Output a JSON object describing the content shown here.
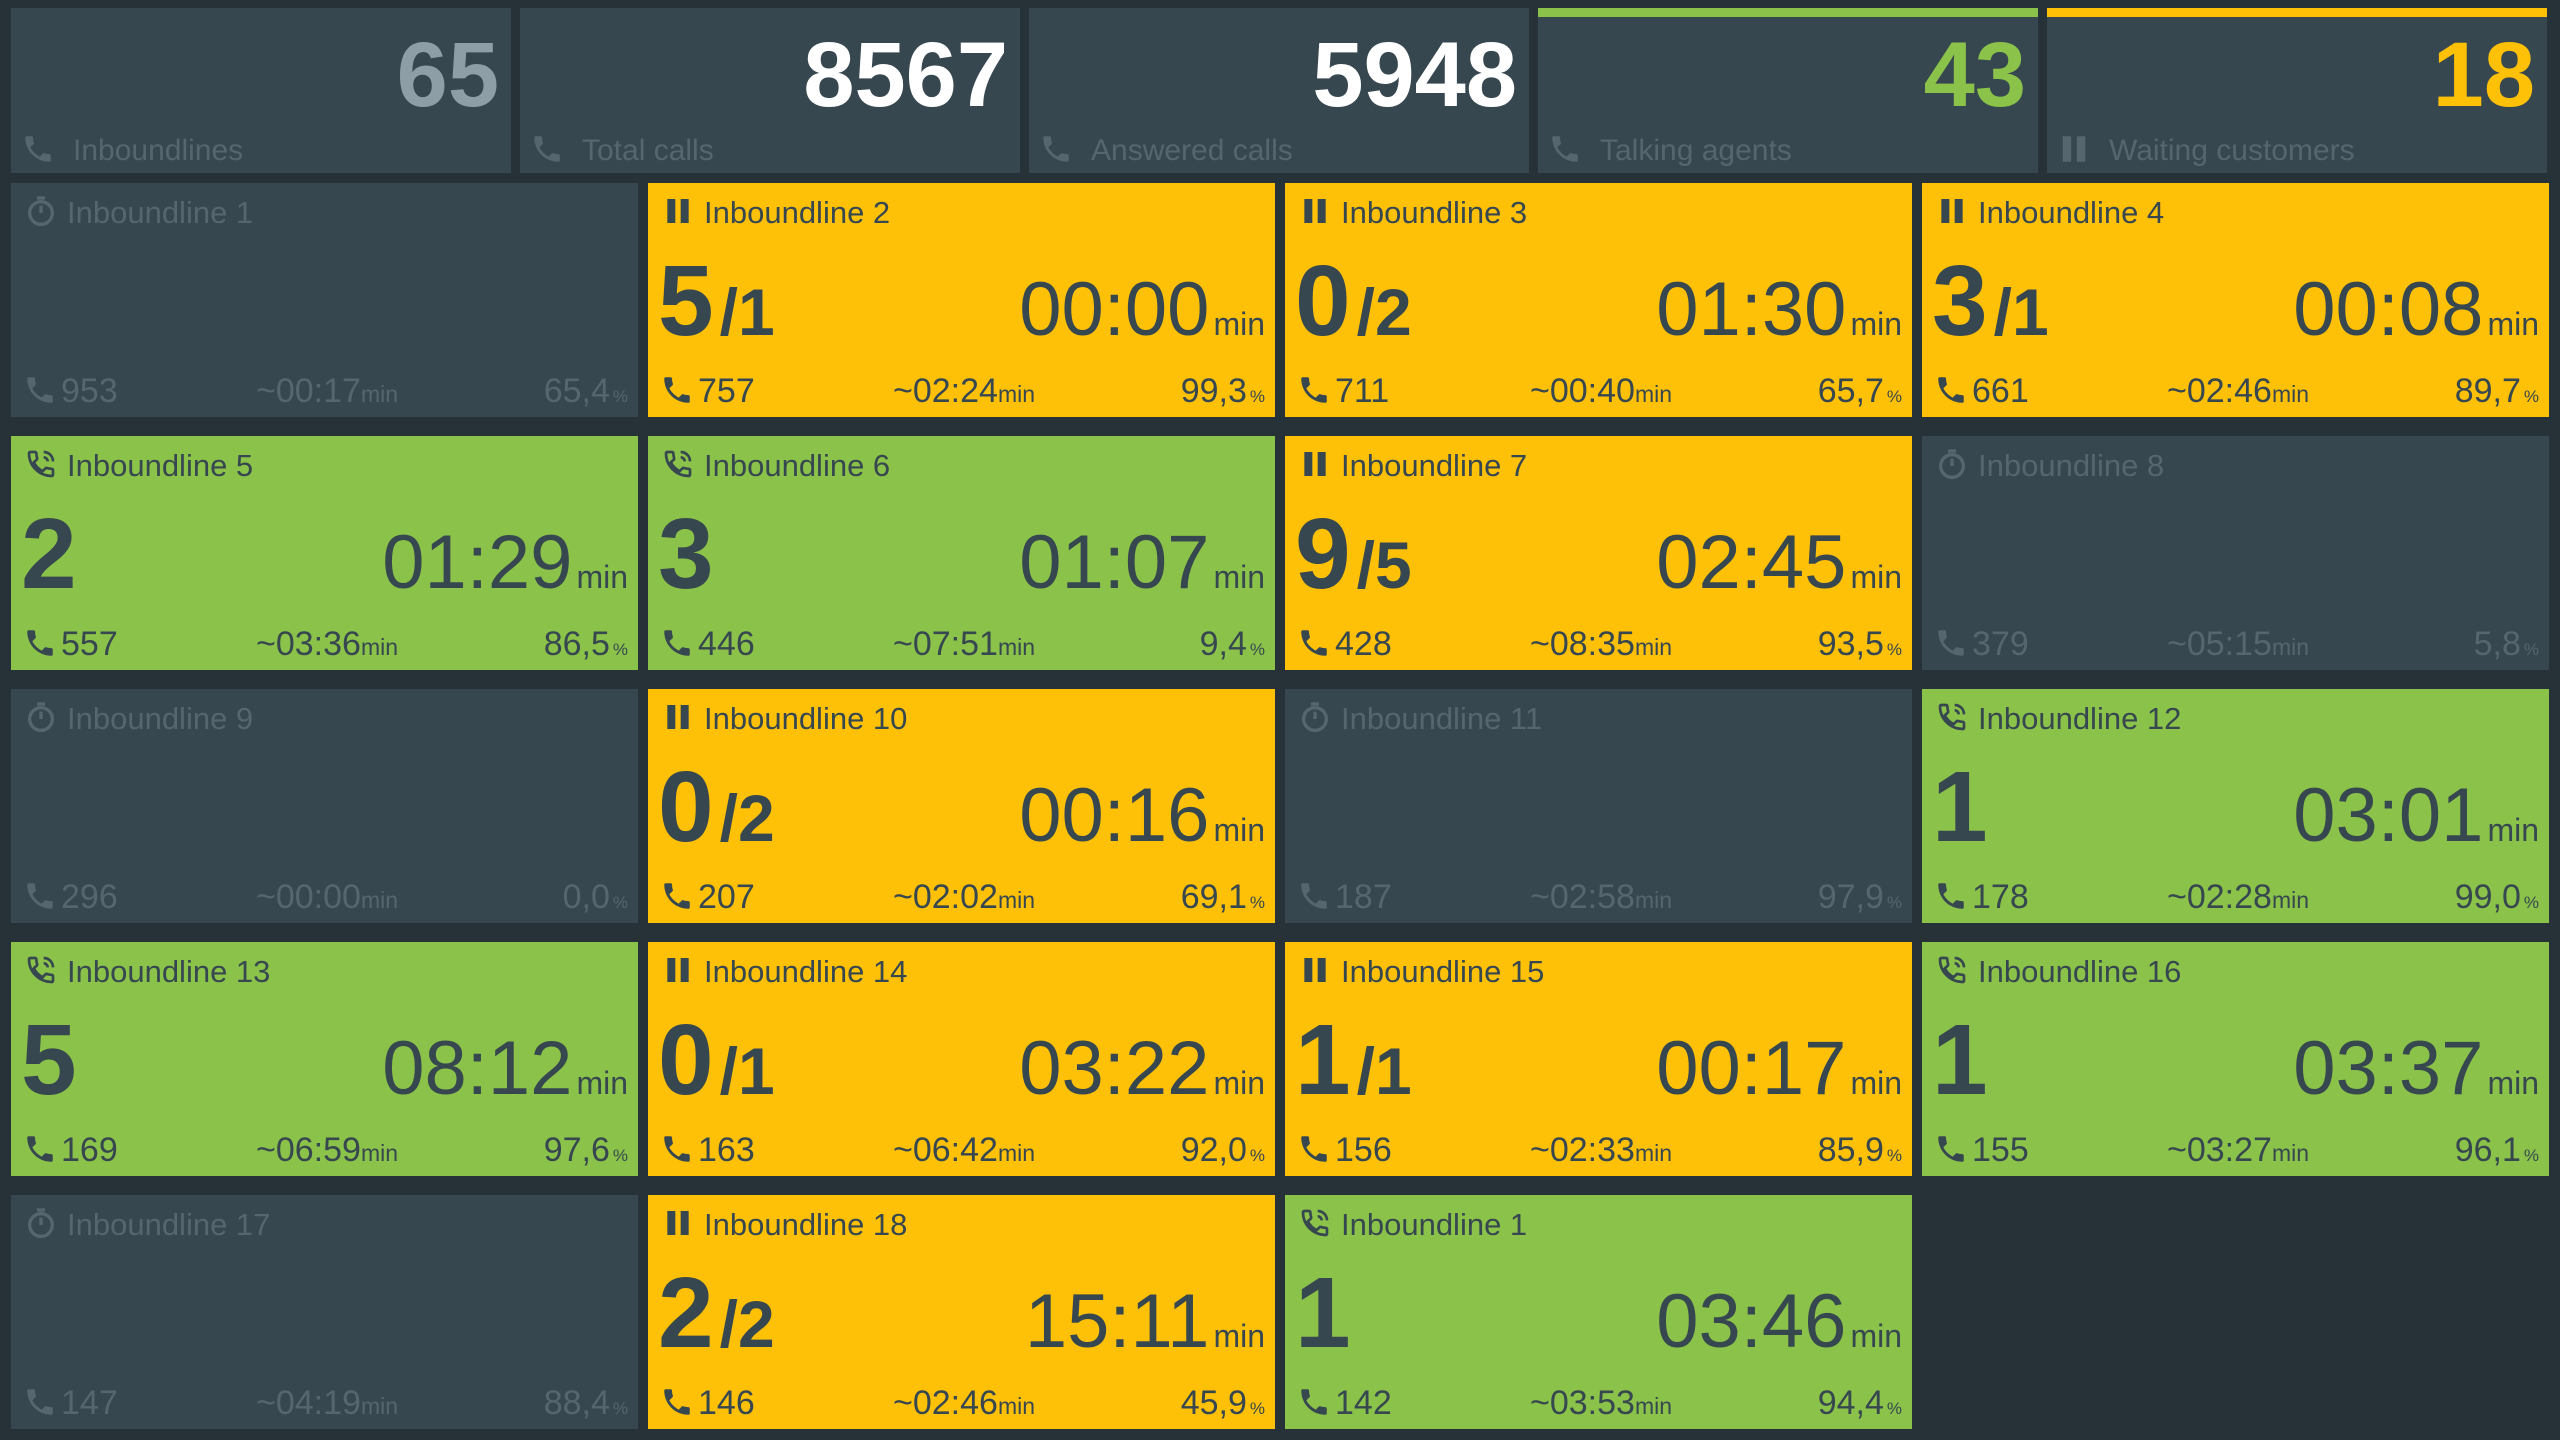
{
  "units": {
    "time": "min",
    "percent": "%"
  },
  "stats": [
    {
      "value": 65,
      "label": "Inboundlines",
      "color": "#8d9ea7",
      "top_bar": false,
      "icon": "phone"
    },
    {
      "value": 8567,
      "label": "Total calls",
      "color": "#ffffff",
      "top_bar": false,
      "icon": "phone"
    },
    {
      "value": 5948,
      "label": "Answered calls",
      "color": "#ffffff",
      "top_bar": false,
      "icon": "phone"
    },
    {
      "value": 43,
      "label": "Talking agents",
      "color": "#8bc34a",
      "top_bar": true,
      "icon": "phone"
    },
    {
      "value": 18,
      "label": "Waiting customers",
      "color": "#ffc107",
      "top_bar": true,
      "icon": "pause"
    }
  ],
  "lines": [
    {
      "name": "Inboundline 1",
      "status": "idle",
      "calls": 953,
      "avg": "~00:17",
      "pct": "65,4"
    },
    {
      "name": "Inboundline 2",
      "status": "paused",
      "agents": 5,
      "queue": "/1",
      "time": "00:00",
      "calls": 757,
      "avg": "~02:24",
      "pct": "99,3"
    },
    {
      "name": "Inboundline 3",
      "status": "paused",
      "agents": 0,
      "queue": "/2",
      "time": "01:30",
      "calls": 711,
      "avg": "~00:40",
      "pct": "65,7"
    },
    {
      "name": "Inboundline 4",
      "status": "paused",
      "agents": 3,
      "queue": "/1",
      "time": "00:08",
      "calls": 661,
      "avg": "~02:46",
      "pct": "89,7"
    },
    {
      "name": "Inboundline 5",
      "status": "talking",
      "agents": 2,
      "time": "01:29",
      "calls": 557,
      "avg": "~03:36",
      "pct": "86,5"
    },
    {
      "name": "Inboundline 6",
      "status": "talking",
      "agents": 3,
      "time": "01:07",
      "calls": 446,
      "avg": "~07:51",
      "pct": "9,4"
    },
    {
      "name": "Inboundline 7",
      "status": "paused",
      "agents": 9,
      "queue": "/5",
      "time": "02:45",
      "calls": 428,
      "avg": "~08:35",
      "pct": "93,5"
    },
    {
      "name": "Inboundline 8",
      "status": "idle",
      "calls": 379,
      "avg": "~05:15",
      "pct": "5,8"
    },
    {
      "name": "Inboundline 9",
      "status": "idle",
      "calls": 296,
      "avg": "~00:00",
      "pct": "0,0"
    },
    {
      "name": "Inboundline 10",
      "status": "paused",
      "agents": 0,
      "queue": "/2",
      "time": "00:16",
      "calls": 207,
      "avg": "~02:02",
      "pct": "69,1"
    },
    {
      "name": "Inboundline 11",
      "status": "idle",
      "calls": 187,
      "avg": "~02:58",
      "pct": "97,9"
    },
    {
      "name": "Inboundline 12",
      "status": "talking",
      "agents": 1,
      "time": "03:01",
      "calls": 178,
      "avg": "~02:28",
      "pct": "99,0"
    },
    {
      "name": "Inboundline 13",
      "status": "talking",
      "agents": 5,
      "time": "08:12",
      "calls": 169,
      "avg": "~06:59",
      "pct": "97,6"
    },
    {
      "name": "Inboundline 14",
      "status": "paused",
      "agents": 0,
      "queue": "/1",
      "time": "03:22",
      "calls": 163,
      "avg": "~06:42",
      "pct": "92,0"
    },
    {
      "name": "Inboundline 15",
      "status": "paused",
      "agents": 1,
      "queue": "/1",
      "time": "00:17",
      "calls": 156,
      "avg": "~02:33",
      "pct": "85,9"
    },
    {
      "name": "Inboundline 16",
      "status": "talking",
      "agents": 1,
      "time": "03:37",
      "calls": 155,
      "avg": "~03:27",
      "pct": "96,1"
    },
    {
      "name": "Inboundline 17",
      "status": "idle",
      "calls": 147,
      "avg": "~04:19",
      "pct": "88,4"
    },
    {
      "name": "Inboundline 18",
      "status": "paused",
      "agents": 2,
      "queue": "/2",
      "time": "15:11",
      "calls": 146,
      "avg": "~02:46",
      "pct": "45,9"
    },
    {
      "name": "Inboundline 1",
      "status": "talking",
      "agents": 1,
      "time": "03:46",
      "calls": 142,
      "avg": "~03:53",
      "pct": "94,4"
    }
  ]
}
